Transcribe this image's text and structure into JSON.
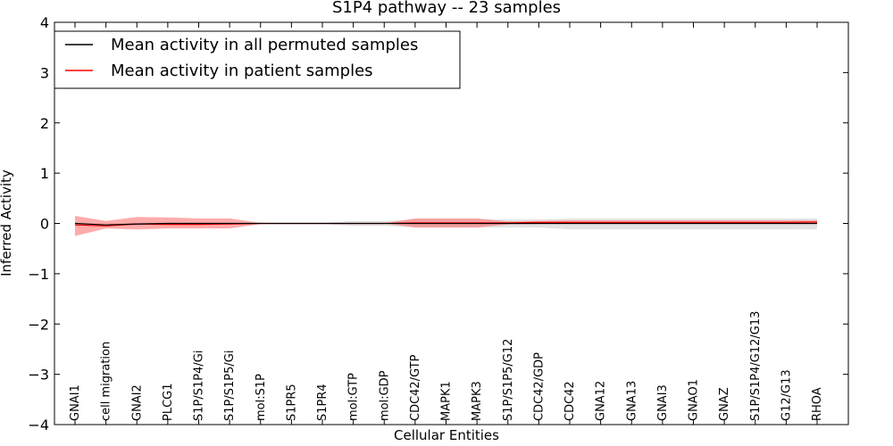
{
  "chart_data": {
    "type": "line",
    "title": "S1P4 pathway -- 23 samples",
    "xlabel": "Cellular Entities",
    "ylabel": "Inferred Activity",
    "ylim": [
      -4,
      4
    ],
    "yticks": [
      -4,
      -3,
      -2,
      -1,
      0,
      1,
      2,
      3,
      4
    ],
    "ytick_labels": [
      "−4",
      "−3",
      "−2",
      "−1",
      "0",
      "1",
      "2",
      "3",
      "4"
    ],
    "legend_position": "top-left",
    "categories": [
      "GNAI1",
      "cell migration",
      "GNAI2",
      "PLCG1",
      "S1P/S1P4/Gi",
      "S1P/S1P5/Gi",
      "mol:S1P",
      "S1PR5",
      "S1PR4",
      "mol:GTP",
      "mol:GDP",
      "CDC42/GTP",
      "MAPK1",
      "MAPK3",
      "S1P/S1P5/G12",
      "CDC42/GDP",
      "CDC42",
      "GNA12",
      "GNA13",
      "GNAI3",
      "GNAO1",
      "GNAZ",
      "S1P/S1P4/G12/G13",
      "G12/G13",
      "RHOA"
    ],
    "series": [
      {
        "name": "Mean activity in all permuted samples",
        "color": "#000000",
        "values": [
          0.0,
          -0.03,
          -0.01,
          0.0,
          0.0,
          0.0,
          0.0,
          0.0,
          0.0,
          0.0,
          0.0,
          0.0,
          0.0,
          0.0,
          0.0,
          0.0,
          0.0,
          0.0,
          0.0,
          0.0,
          0.0,
          0.0,
          0.0,
          0.0,
          0.0
        ],
        "band_upper": [
          0.02,
          0.0,
          0.02,
          0.02,
          0.02,
          0.02,
          0.01,
          0.01,
          0.01,
          0.05,
          0.05,
          0.08,
          0.08,
          0.08,
          0.08,
          0.08,
          0.1,
          0.1,
          0.1,
          0.1,
          0.1,
          0.1,
          0.1,
          0.1,
          0.1
        ],
        "band_lower": [
          -0.02,
          -0.05,
          -0.03,
          -0.02,
          -0.02,
          -0.02,
          -0.01,
          -0.01,
          -0.01,
          -0.05,
          -0.05,
          -0.08,
          -0.08,
          -0.08,
          -0.08,
          -0.08,
          -0.12,
          -0.12,
          -0.12,
          -0.12,
          -0.12,
          -0.12,
          -0.12,
          -0.12,
          -0.12
        ],
        "band_color": "#cccccc"
      },
      {
        "name": "Mean activity in patient samples",
        "color": "#ff0000",
        "values": [
          -0.03,
          -0.05,
          -0.01,
          -0.02,
          -0.02,
          -0.01,
          0.0,
          0.0,
          0.0,
          0.0,
          0.0,
          0.01,
          0.01,
          0.01,
          0.01,
          0.02,
          0.02,
          0.02,
          0.02,
          0.02,
          0.02,
          0.02,
          0.02,
          0.02,
          0.03
        ],
        "band_upper": [
          0.15,
          0.05,
          0.13,
          0.12,
          0.1,
          0.1,
          0.01,
          0.0,
          0.0,
          0.0,
          0.0,
          0.1,
          0.1,
          0.1,
          0.04,
          0.05,
          0.06,
          0.06,
          0.06,
          0.06,
          0.06,
          0.06,
          0.06,
          0.06,
          0.06
        ],
        "band_lower": [
          -0.25,
          -0.1,
          -0.12,
          -0.1,
          -0.1,
          -0.1,
          -0.01,
          0.0,
          0.0,
          0.0,
          0.0,
          -0.08,
          -0.08,
          -0.08,
          -0.02,
          -0.01,
          -0.01,
          -0.01,
          -0.01,
          -0.01,
          -0.01,
          -0.01,
          -0.01,
          -0.01,
          -0.01
        ],
        "band_color": "#ff6666"
      }
    ],
    "grid": false
  }
}
